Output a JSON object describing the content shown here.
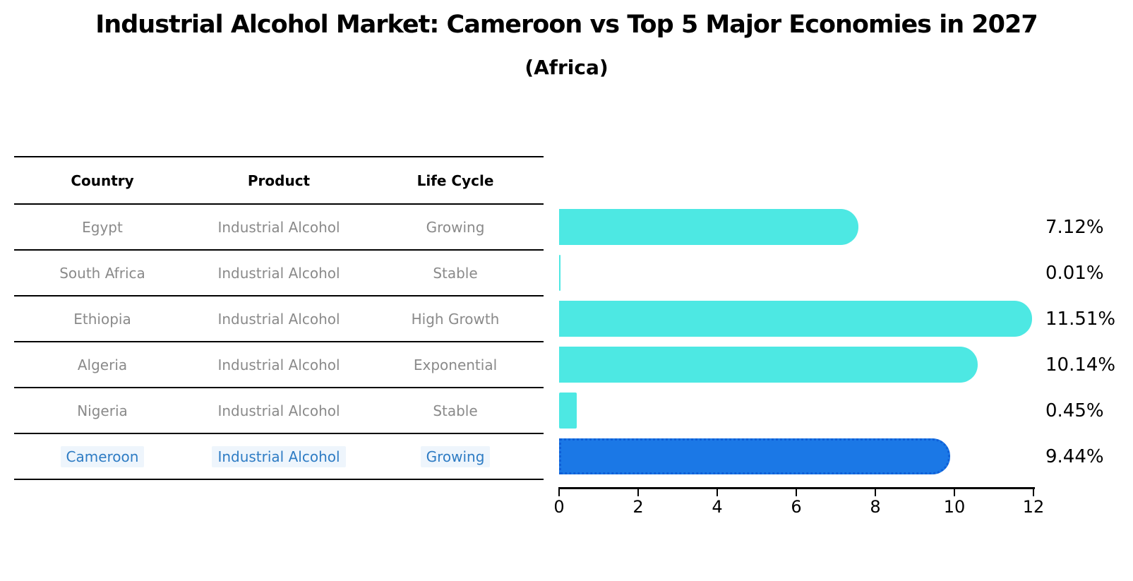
{
  "title": "Industrial Alcohol Market: Cameroon vs Top 5 Major Economies in 2027",
  "subtitle": "(Africa)",
  "table": {
    "headers": [
      "Country",
      "Product",
      "Life Cycle"
    ],
    "rows": [
      {
        "country": "Egypt",
        "product": "Industrial Alcohol",
        "life_cycle": "Growing",
        "highlight": false
      },
      {
        "country": "South Africa",
        "product": "Industrial Alcohol",
        "life_cycle": "Stable",
        "highlight": false
      },
      {
        "country": "Ethiopia",
        "product": "Industrial Alcohol",
        "life_cycle": "High Growth",
        "highlight": false
      },
      {
        "country": "Algeria",
        "product": "Industrial Alcohol",
        "life_cycle": "Exponential",
        "highlight": false
      },
      {
        "country": "Nigeria",
        "product": "Industrial Alcohol",
        "life_cycle": "Stable",
        "highlight": false
      },
      {
        "country": "Cameroon",
        "product": "Industrial Alcohol",
        "life_cycle": "Growing",
        "highlight": true
      }
    ]
  },
  "chart_data": {
    "type": "bar",
    "orientation": "horizontal",
    "title": "Industrial Alcohol Market: Cameroon vs Top 5 Major Economies in 2027",
    "subtitle": "(Africa)",
    "categories": [
      "Egypt",
      "South Africa",
      "Ethiopia",
      "Algeria",
      "Nigeria",
      "Cameroon"
    ],
    "values": [
      7.12,
      0.01,
      11.51,
      10.14,
      0.45,
      9.44
    ],
    "value_labels": [
      "7.12%",
      "0.01%",
      "11.51%",
      "10.14%",
      "0.45%",
      "9.44%"
    ],
    "highlight_index": 5,
    "xlim": [
      0,
      12
    ],
    "xticks": [
      "0",
      "2",
      "4",
      "6",
      "8",
      "10",
      "12"
    ],
    "grid": false,
    "legend": false,
    "colors": {
      "bar": "#4de8e3",
      "highlight_bar": "#1b78e6",
      "highlight_bar_border": "#0f5fd7",
      "row_text": "#8a8a8a",
      "highlight_text": "#2e7cc4",
      "axis": "#000000"
    }
  }
}
